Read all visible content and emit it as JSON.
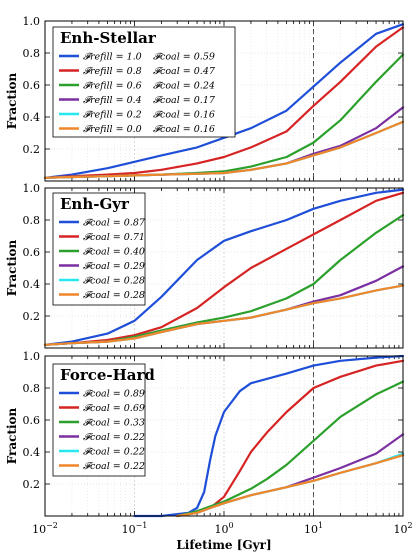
{
  "chart_data": [
    {
      "type": "line",
      "title": "Enh-Stellar",
      "ylabel": "Fraction",
      "xlabel": "",
      "xscale": "log",
      "xlim": [
        0.01,
        100
      ],
      "ylim": [
        0,
        1.0
      ],
      "xticks": [
        "10",
        "10",
        "10",
        "10",
        "10"
      ],
      "xtick_exponents": [
        "−2",
        "−1",
        "0",
        "1",
        "2"
      ],
      "yticks": [
        "0.2",
        "0.4",
        "0.6",
        "0.8",
        "1.0"
      ],
      "ytick_values": [
        0.2,
        0.4,
        0.6,
        0.8,
        1.0
      ],
      "show_x_ticklabels": false,
      "vline_x": 10,
      "legend_placement": "top-left",
      "series": [
        {
          "label1": "𝓕refill = 1.0",
          "label2": "𝓕coal = 0.59",
          "color": "#1f4fd8",
          "x": [
            0.01,
            0.02,
            0.05,
            0.1,
            0.2,
            0.5,
            1,
            2,
            5,
            10,
            20,
            50,
            100
          ],
          "y": [
            0.02,
            0.04,
            0.08,
            0.12,
            0.16,
            0.21,
            0.27,
            0.33,
            0.44,
            0.59,
            0.74,
            0.92,
            0.98
          ]
        },
        {
          "label1": "𝓕refill = 0.8",
          "label2": "𝓕coal = 0.47",
          "color": "#d62424",
          "x": [
            0.01,
            0.02,
            0.05,
            0.1,
            0.2,
            0.5,
            1,
            2,
            5,
            10,
            20,
            50,
            100
          ],
          "y": [
            0.02,
            0.03,
            0.04,
            0.05,
            0.07,
            0.11,
            0.15,
            0.21,
            0.31,
            0.47,
            0.62,
            0.84,
            0.96
          ]
        },
        {
          "label1": "𝓕refill = 0.6",
          "label2": "𝓕coal = 0.24",
          "color": "#2ca02c",
          "x": [
            0.01,
            0.02,
            0.05,
            0.1,
            0.2,
            0.5,
            1,
            2,
            5,
            10,
            20,
            50,
            100
          ],
          "y": [
            0.02,
            0.025,
            0.03,
            0.035,
            0.04,
            0.05,
            0.06,
            0.09,
            0.15,
            0.24,
            0.38,
            0.62,
            0.79
          ]
        },
        {
          "label1": "𝓕refill = 0.4",
          "label2": "𝓕coal = 0.17",
          "color": "#7b2fa0",
          "x": [
            0.01,
            0.02,
            0.05,
            0.1,
            0.2,
            0.5,
            1,
            2,
            5,
            10,
            20,
            50,
            100
          ],
          "y": [
            0.02,
            0.025,
            0.03,
            0.035,
            0.04,
            0.045,
            0.05,
            0.07,
            0.11,
            0.17,
            0.22,
            0.33,
            0.46
          ]
        },
        {
          "label1": "𝓕refill = 0.2",
          "label2": "𝓕coal = 0.16",
          "color": "#27e8f0",
          "x": [
            0.01,
            0.02,
            0.05,
            0.1,
            0.2,
            0.5,
            1,
            2,
            5,
            10,
            20,
            50,
            100
          ],
          "y": [
            0.02,
            0.025,
            0.03,
            0.035,
            0.04,
            0.045,
            0.05,
            0.07,
            0.11,
            0.16,
            0.21,
            0.3,
            0.37
          ]
        },
        {
          "label1": "𝓕refill = 0.0",
          "label2": "𝓕coal = 0.16",
          "color": "#f0862a",
          "x": [
            0.01,
            0.02,
            0.05,
            0.1,
            0.2,
            0.5,
            1,
            2,
            5,
            10,
            20,
            50,
            100
          ],
          "y": [
            0.02,
            0.025,
            0.03,
            0.035,
            0.04,
            0.045,
            0.05,
            0.07,
            0.11,
            0.16,
            0.21,
            0.3,
            0.37
          ]
        }
      ]
    },
    {
      "type": "line",
      "title": "Enh-Gyr",
      "ylabel": "Fraction",
      "xlabel": "",
      "xscale": "log",
      "xlim": [
        0.01,
        100
      ],
      "ylim": [
        0,
        1.0
      ],
      "xticks": [
        "10",
        "10",
        "10",
        "10",
        "10"
      ],
      "xtick_exponents": [
        "−2",
        "−1",
        "0",
        "1",
        "2"
      ],
      "yticks": [
        "0.2",
        "0.4",
        "0.6",
        "0.8",
        "1.0"
      ],
      "ytick_values": [
        0.2,
        0.4,
        0.6,
        0.8,
        1.0
      ],
      "show_x_ticklabels": false,
      "vline_x": 10,
      "legend_placement": "top-left",
      "series": [
        {
          "label1": "𝓕coal = 0.87",
          "color": "#1f4fd8",
          "x": [
            0.01,
            0.02,
            0.05,
            0.1,
            0.2,
            0.5,
            1,
            2,
            5,
            10,
            20,
            50,
            100
          ],
          "y": [
            0.02,
            0.04,
            0.09,
            0.17,
            0.32,
            0.55,
            0.67,
            0.73,
            0.8,
            0.87,
            0.92,
            0.97,
            0.99
          ]
        },
        {
          "label1": "𝓕coal = 0.71",
          "color": "#d62424",
          "x": [
            0.01,
            0.02,
            0.05,
            0.1,
            0.2,
            0.5,
            1,
            2,
            5,
            10,
            20,
            50,
            100
          ],
          "y": [
            0.02,
            0.03,
            0.05,
            0.08,
            0.13,
            0.25,
            0.38,
            0.5,
            0.62,
            0.71,
            0.8,
            0.92,
            0.97
          ]
        },
        {
          "label1": "𝓕coal = 0.40",
          "color": "#2ca02c",
          "x": [
            0.01,
            0.02,
            0.05,
            0.1,
            0.2,
            0.5,
            1,
            2,
            5,
            10,
            20,
            50,
            100
          ],
          "y": [
            0.02,
            0.03,
            0.04,
            0.07,
            0.11,
            0.16,
            0.19,
            0.23,
            0.31,
            0.4,
            0.55,
            0.72,
            0.83
          ]
        },
        {
          "label1": "𝓕coal = 0.29",
          "color": "#7b2fa0",
          "x": [
            0.01,
            0.02,
            0.05,
            0.1,
            0.2,
            0.5,
            1,
            2,
            5,
            10,
            20,
            50,
            100
          ],
          "y": [
            0.02,
            0.03,
            0.04,
            0.06,
            0.1,
            0.15,
            0.17,
            0.19,
            0.24,
            0.29,
            0.33,
            0.42,
            0.51
          ]
        },
        {
          "label1": "𝓕coal = 0.28",
          "color": "#27e8f0",
          "x": [
            0.01,
            0.02,
            0.05,
            0.1,
            0.2,
            0.5,
            1,
            2,
            5,
            10,
            20,
            50,
            100
          ],
          "y": [
            0.02,
            0.03,
            0.04,
            0.06,
            0.1,
            0.15,
            0.17,
            0.19,
            0.24,
            0.28,
            0.31,
            0.36,
            0.39
          ]
        },
        {
          "label1": "𝓕coal = 0.28",
          "color": "#f0862a",
          "x": [
            0.01,
            0.02,
            0.05,
            0.1,
            0.2,
            0.5,
            1,
            2,
            5,
            10,
            20,
            50,
            100
          ],
          "y": [
            0.02,
            0.03,
            0.04,
            0.06,
            0.1,
            0.15,
            0.17,
            0.19,
            0.24,
            0.28,
            0.31,
            0.36,
            0.39
          ]
        }
      ]
    },
    {
      "type": "line",
      "title": "Force-Hard",
      "ylabel": "Fraction",
      "xlabel": "Lifetime [Gyr]",
      "xscale": "log",
      "xlim": [
        0.01,
        100
      ],
      "ylim": [
        0,
        1.0
      ],
      "xticks": [
        "10",
        "10",
        "10",
        "10",
        "10"
      ],
      "xtick_exponents": [
        "−2",
        "−1",
        "0",
        "1",
        "2"
      ],
      "yticks": [
        "0.2",
        "0.4",
        "0.6",
        "0.8",
        "1.0"
      ],
      "ytick_values": [
        0.2,
        0.4,
        0.6,
        0.8,
        1.0
      ],
      "show_x_ticklabels": true,
      "vline_x": 10,
      "legend_placement": "top-left",
      "series": [
        {
          "label1": "𝓕coal = 0.89",
          "color": "#1f4fd8",
          "x": [
            0.1,
            0.2,
            0.4,
            0.5,
            0.6,
            0.7,
            0.8,
            1,
            1.5,
            2,
            5,
            10,
            20,
            50,
            100
          ],
          "y": [
            0.0,
            0.0,
            0.02,
            0.05,
            0.15,
            0.35,
            0.5,
            0.65,
            0.78,
            0.83,
            0.89,
            0.94,
            0.97,
            0.99,
            1.0
          ]
        },
        {
          "label1": "𝓕coal = 0.69",
          "color": "#d62424",
          "x": [
            0.3,
            0.5,
            0.7,
            1,
            1.5,
            2,
            3,
            5,
            10,
            20,
            50,
            100
          ],
          "y": [
            0.0,
            0.02,
            0.05,
            0.12,
            0.28,
            0.4,
            0.52,
            0.65,
            0.8,
            0.87,
            0.94,
            0.97
          ]
        },
        {
          "label1": "𝓕coal = 0.33",
          "color": "#2ca02c",
          "x": [
            0.3,
            0.5,
            0.7,
            1,
            2,
            3,
            5,
            10,
            20,
            50,
            100
          ],
          "y": [
            0.0,
            0.03,
            0.06,
            0.09,
            0.17,
            0.23,
            0.32,
            0.47,
            0.62,
            0.76,
            0.84
          ]
        },
        {
          "label1": "𝓕coal = 0.22",
          "color": "#7b2fa0",
          "x": [
            0.3,
            0.5,
            0.7,
            1,
            2,
            5,
            10,
            20,
            50,
            100
          ],
          "y": [
            0.0,
            0.02,
            0.05,
            0.08,
            0.13,
            0.18,
            0.24,
            0.3,
            0.39,
            0.51
          ]
        },
        {
          "label1": "𝓕coal = 0.22",
          "color": "#27e8f0",
          "x": [
            0.3,
            0.5,
            0.7,
            1,
            2,
            5,
            10,
            20,
            50,
            100
          ],
          "y": [
            0.0,
            0.02,
            0.05,
            0.08,
            0.13,
            0.18,
            0.22,
            0.27,
            0.33,
            0.39
          ]
        },
        {
          "label1": "𝓕coal = 0.22",
          "color": "#f0862a",
          "x": [
            0.3,
            0.5,
            0.7,
            1,
            2,
            5,
            10,
            20,
            50,
            100
          ],
          "y": [
            0.0,
            0.02,
            0.05,
            0.08,
            0.13,
            0.18,
            0.22,
            0.27,
            0.33,
            0.38
          ]
        }
      ]
    }
  ]
}
